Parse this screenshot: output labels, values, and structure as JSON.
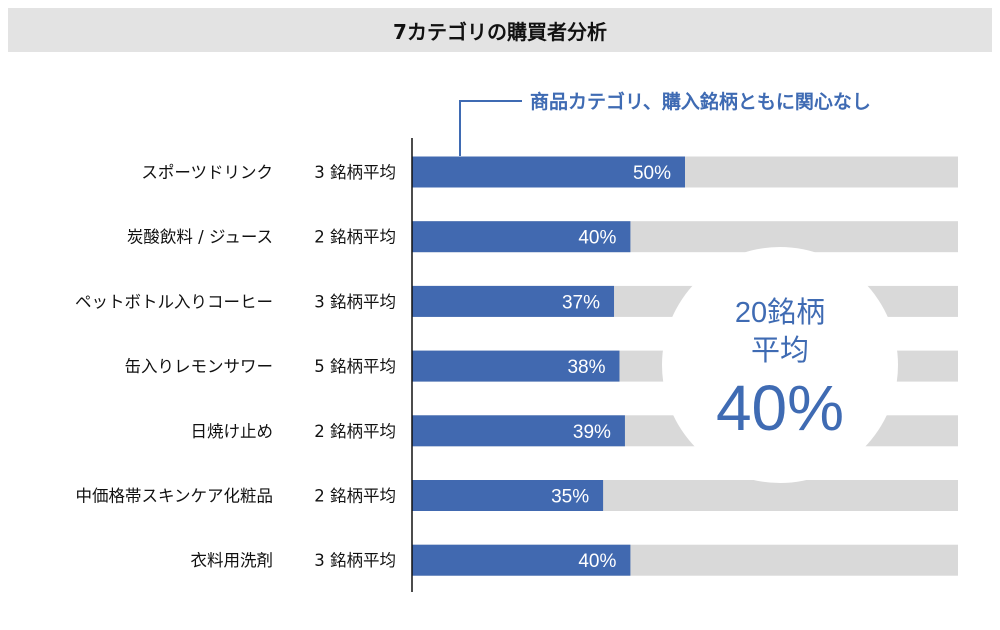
{
  "title": "7カテゴリの購買者分析",
  "colors": {
    "bar": "#4169b0",
    "track": "#d9d9d9",
    "accent": "#3f6bb3"
  },
  "annotation": "商品カテゴリ、購入銘柄ともに関心なし",
  "summary": {
    "line1": "20銘柄",
    "line2": "平均",
    "value": "40%"
  },
  "chart_data": {
    "type": "bar",
    "orientation": "horizontal",
    "title": "7カテゴリの購買者分析",
    "categories": [
      "スポーツドリンク",
      "炭酸飲料 / ジュース",
      "ペットボトル入りコーヒー",
      "缶入りレモンサワー",
      "日焼け止め",
      "中価格帯スキンケア化粧品",
      "衣料用洗剤"
    ],
    "brand_counts": [
      "3 銘柄平均",
      "2 銘柄平均",
      "3 銘柄平均",
      "5 銘柄平均",
      "2 銘柄平均",
      "2 銘柄平均",
      "3 銘柄平均"
    ],
    "values": [
      50,
      40,
      37,
      38,
      39,
      35,
      40
    ],
    "value_labels": [
      "50%",
      "40%",
      "37%",
      "38%",
      "39%",
      "35%",
      "40%"
    ],
    "xlim": [
      0,
      100
    ],
    "grid": false
  }
}
